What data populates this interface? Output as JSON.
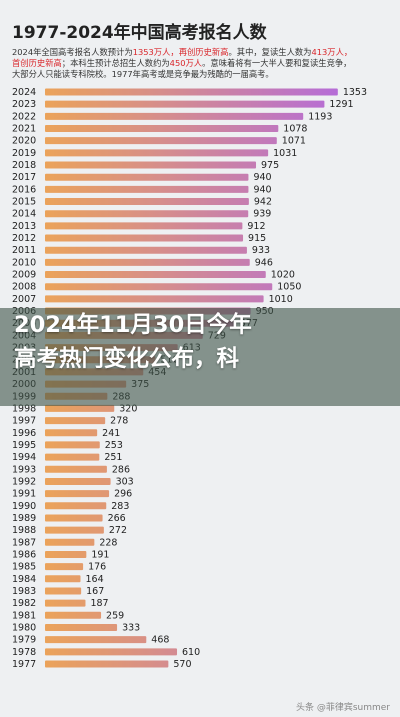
{
  "chart_data": {
    "type": "hbar",
    "title": "1977-2024年中国高考报名人数",
    "intro": [
      [
        {
          "text": "2024年全国高考报名人数预计为"
        },
        {
          "text": "1353万人，再创历史新高",
          "highlight": true
        },
        {
          "text": "。其中，复读生人数为"
        },
        {
          "text": "413万人，",
          "highlight": true
        }
      ],
      [
        {
          "text": "首创历史新高",
          "highlight": true
        },
        {
          "text": "；本科生预计总招生人数约为"
        },
        {
          "text": "450万人",
          "highlight": true
        },
        {
          "text": "。意味着将有一大半人要和复读生竞争，"
        }
      ],
      [
        {
          "text": "大部分人只能读专科院校。1977年高考或是竞争最为残酷的一届高考。"
        }
      ]
    ],
    "categories": [
      "2024",
      "2023",
      "2022",
      "2021",
      "2020",
      "2019",
      "2018",
      "2017",
      "2016",
      "2015",
      "2014",
      "2013",
      "2012",
      "2011",
      "2010",
      "2009",
      "2008",
      "2007",
      "2006",
      "2005",
      "2004",
      "2003",
      "2002",
      "2001",
      "2000",
      "1999",
      "1998",
      "1997",
      "1996",
      "1995",
      "1994",
      "1993",
      "1992",
      "1991",
      "1990",
      "1989",
      "1988",
      "1987",
      "1986",
      "1985",
      "1984",
      "1983",
      "1982",
      "1981",
      "1980",
      "1979",
      "1978",
      "1977"
    ],
    "values": [
      1353,
      1291,
      1193,
      1078,
      1071,
      1031,
      975,
      940,
      940,
      942,
      939,
      912,
      915,
      933,
      946,
      1020,
      1050,
      1010,
      950,
      877,
      729,
      613,
      510,
      454,
      375,
      288,
      320,
      278,
      241,
      253,
      251,
      286,
      303,
      296,
      283,
      266,
      272,
      228,
      191,
      176,
      164,
      167,
      187,
      259,
      333,
      468,
      610,
      570
    ],
    "colors": [
      "#eba35a",
      "#b56cd8"
    ],
    "xlim": [
      0,
      1400
    ],
    "overlay": [
      "2024年11月30日今年",
      "高考热门变化公布，科"
    ],
    "watermark": "头条 @菲律宾summer"
  }
}
